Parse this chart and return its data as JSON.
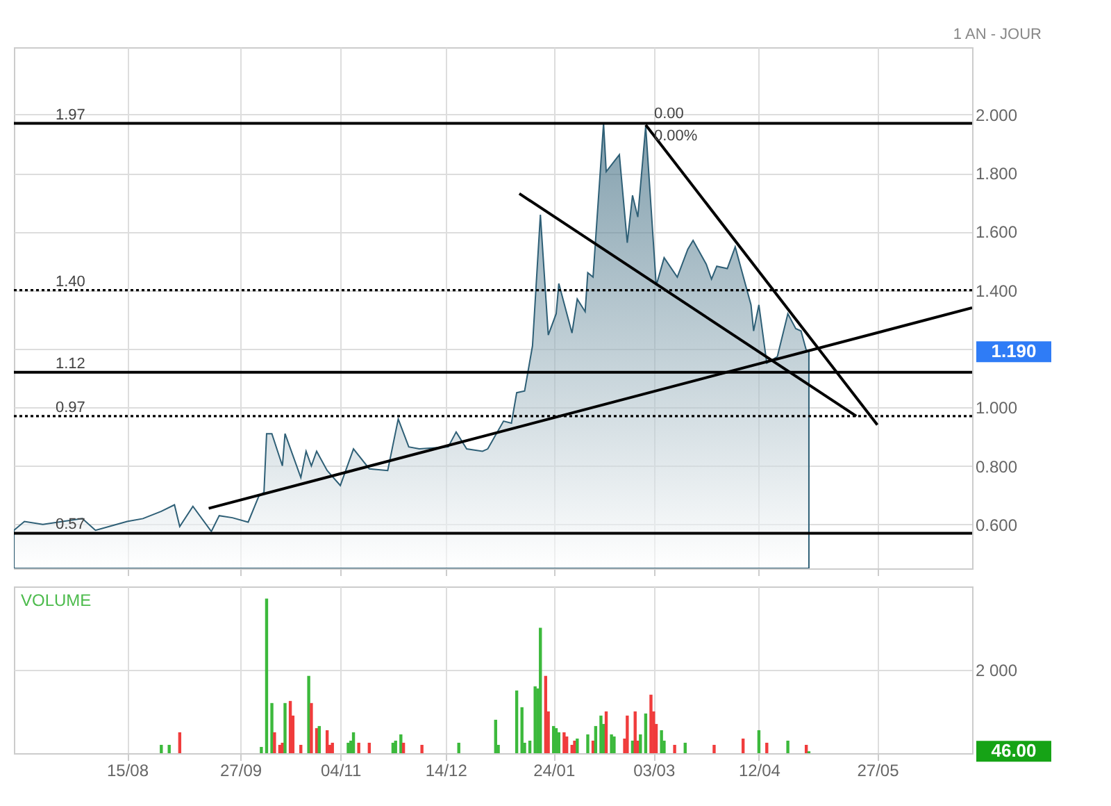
{
  "chart_data": [
    {
      "type": "area",
      "tick_labels": "y",
      "grid": true,
      "annotations": [
        "1 AN - JOUR",
        {
          "text": "0.00",
          "x": "2001-02-28",
          "y": 1.97
        },
        {
          "text": "0.00%",
          "x": "2001-02-28",
          "y": 1.96
        },
        "1.190"
      ],
      "xlim": [
        "2000-07-03",
        "2001-07-02"
      ],
      "xticks": [
        {
          "value": "2000-08-15",
          "label": null
        },
        {
          "value": "2000-09-27",
          "label": null
        },
        {
          "value": "2000-11-04",
          "label": null
        },
        {
          "value": "2000-12-14",
          "label": null
        },
        {
          "value": "2001-01-24",
          "label": null
        },
        {
          "value": "2001-03-03",
          "label": null
        },
        {
          "value": "2001-04-12",
          "label": null
        },
        {
          "value": "2001-05-27",
          "label": null
        }
      ],
      "ylim": [
        0.45,
        2.23
      ],
      "yticks": [
        {
          "value": 0.6,
          "label": "0.600"
        },
        {
          "value": 0.8,
          "label": "0.800"
        },
        {
          "value": 1.0,
          "label": "1.000"
        },
        {
          "value": 1.2,
          "label": null
        },
        {
          "value": 1.4,
          "label": "1.400"
        },
        {
          "value": 1.6,
          "label": "1.600"
        },
        {
          "value": 1.8,
          "label": "1.800"
        },
        {
          "value": 2.0,
          "label": "2.000"
        }
      ],
      "x": [
        "2000-07-03",
        "2000-07-07",
        "2000-07-14",
        "2000-07-29",
        "2000-08-03",
        "2000-08-15",
        "2000-08-21",
        "2000-08-28",
        "2000-09-02",
        "2000-09-04",
        "2000-09-09",
        "2000-09-16",
        "2000-09-19",
        "2000-09-24",
        "2000-09-30",
        "2000-10-04",
        "2000-10-06",
        "2000-10-07",
        "2000-10-09",
        "2000-10-13",
        "2000-10-14",
        "2000-10-20",
        "2000-10-22",
        "2000-10-24",
        "2000-10-26",
        "2000-10-30",
        "2000-11-04",
        "2000-11-09",
        "2000-11-15",
        "2000-11-22",
        "2000-11-26",
        "2000-11-30",
        "2000-12-04",
        "2000-12-15",
        "2000-12-18",
        "2000-12-22",
        "2000-12-28",
        "2000-12-30",
        "2001-01-05",
        "2001-01-08",
        "2001-01-10",
        "2001-01-13",
        "2001-01-16",
        "2001-01-19",
        "2001-01-22",
        "2001-01-25",
        "2001-01-26",
        "2001-01-31",
        "2001-02-02",
        "2001-02-05",
        "2001-02-06",
        "2001-02-08",
        "2001-02-12",
        "2001-02-13",
        "2001-02-16",
        "2001-02-18",
        "2001-02-21",
        "2001-02-23",
        "2001-02-25",
        "2001-02-28",
        "2001-03-04",
        "2001-03-07",
        "2001-03-12",
        "2001-03-16",
        "2001-03-18",
        "2001-03-23",
        "2001-03-25",
        "2001-03-27",
        "2001-03-31",
        "2001-04-03",
        "2001-04-09",
        "2001-04-10",
        "2001-04-12",
        "2001-04-15",
        "2001-04-19",
        "2001-04-23",
        "2001-04-26",
        "2001-04-28",
        "2001-04-30",
        "2001-05-01"
      ],
      "series": [
        {
          "type": "area",
          "color": "#2e5f76",
          "values": [
            0.58,
            0.61,
            0.6,
            0.62,
            0.58,
            0.61,
            0.62,
            0.645,
            0.667,
            0.593,
            0.662,
            0.576,
            0.63,
            0.623,
            0.608,
            0.696,
            0.71,
            0.91,
            0.91,
            0.8,
            0.91,
            0.76,
            0.85,
            0.8,
            0.85,
            0.784,
            0.733,
            0.858,
            0.79,
            0.784,
            0.96,
            0.865,
            0.858,
            0.865,
            0.916,
            0.858,
            0.85,
            0.858,
            0.953,
            0.946,
            1.05,
            1.056,
            1.21,
            1.658,
            1.247,
            1.32,
            1.423,
            1.254,
            1.37,
            1.327,
            1.46,
            1.445,
            1.97,
            1.805,
            1.84,
            1.863,
            1.562,
            1.724,
            1.65,
            1.96,
            1.416,
            1.511,
            1.445,
            1.54,
            1.57,
            1.489,
            1.438,
            1.482,
            1.474,
            1.548,
            1.35,
            1.261,
            1.35,
            1.151,
            1.173,
            1.32,
            1.269,
            1.261,
            1.195,
            1.19
          ]
        },
        {
          "type": "line",
          "color": "#000000",
          "x": [
            "2000-09-15",
            "2001-07-02"
          ],
          "values": [
            0.655,
            1.34
          ]
        },
        {
          "type": "line",
          "color": "#000000",
          "x": [
            "2001-01-11",
            "2001-05-19"
          ],
          "values": [
            1.73,
            0.97
          ]
        },
        {
          "type": "line",
          "color": "#000000",
          "x": [
            "2001-02-28",
            "2001-05-27"
          ],
          "values": [
            1.965,
            0.94
          ]
        }
      ],
      "ref_lines": [
        {
          "axis": "y",
          "value": 1.97,
          "label": "1.97",
          "color": "#000000",
          "line_style": "solid"
        },
        {
          "axis": "y",
          "value": 1.4,
          "label": "1.40",
          "color": "#000000",
          "line_style": "dotted"
        },
        {
          "axis": "y",
          "value": 1.12,
          "label": "1.12",
          "color": "#000000",
          "line_style": "solid"
        },
        {
          "axis": "y",
          "value": 0.97,
          "label": "0.97",
          "color": "#000000",
          "line_style": "dotted"
        },
        {
          "axis": "y",
          "value": 0.57,
          "label": "0.57",
          "color": "#000000",
          "line_style": "solid"
        }
      ]
    },
    {
      "type": "bar",
      "title": "VOLUME",
      "grid": true,
      "annotations": [
        "46.00"
      ],
      "xlim": [
        "2000-07-03",
        "2001-07-02"
      ],
      "xticks": [
        {
          "value": "2000-08-15",
          "label": "15/08"
        },
        {
          "value": "2000-09-27",
          "label": "27/09"
        },
        {
          "value": "2000-11-04",
          "label": "04/11"
        },
        {
          "value": "2000-12-14",
          "label": "14/12"
        },
        {
          "value": "2001-01-24",
          "label": "24/01"
        },
        {
          "value": "2001-03-03",
          "label": "03/03"
        },
        {
          "value": "2001-04-12",
          "label": "12/04"
        },
        {
          "value": "2001-05-27",
          "label": "27/05"
        }
      ],
      "ylim": [
        0,
        3990
      ],
      "yticks": [
        {
          "value": 2000,
          "label": "2 000"
        }
      ],
      "x": [
        "2000-08-28",
        "2000-08-31",
        "2000-09-04",
        "2000-10-05",
        "2000-10-07",
        "2000-10-09",
        "2000-10-10",
        "2000-10-12",
        "2000-10-13",
        "2000-10-14",
        "2000-10-16",
        "2000-10-17",
        "2000-10-20",
        "2000-10-23",
        "2000-10-24",
        "2000-10-26",
        "2000-10-27",
        "2000-10-30",
        "2000-10-31",
        "2000-11-01",
        "2000-11-07",
        "2000-11-08",
        "2000-11-09",
        "2000-11-11",
        "2000-11-15",
        "2000-11-24",
        "2000-11-25",
        "2000-11-27",
        "2000-11-28",
        "2000-12-05",
        "2000-12-19",
        "2001-01-02",
        "2001-01-03",
        "2001-01-10",
        "2001-01-12",
        "2001-01-13",
        "2001-01-15",
        "2001-01-17",
        "2001-01-18",
        "2001-01-19",
        "2001-01-21",
        "2001-01-22",
        "2001-01-24",
        "2001-01-25",
        "2001-01-26",
        "2001-01-28",
        "2001-01-29",
        "2001-01-31",
        "2001-02-01",
        "2001-02-02",
        "2001-02-06",
        "2001-02-08",
        "2001-02-09",
        "2001-02-11",
        "2001-02-12",
        "2001-02-13",
        "2001-02-15",
        "2001-02-16",
        "2001-02-20",
        "2001-02-21",
        "2001-02-23",
        "2001-02-24",
        "2001-02-25",
        "2001-02-26",
        "2001-02-28",
        "2001-03-02",
        "2001-03-03",
        "2001-03-04",
        "2001-03-06",
        "2001-03-07",
        "2001-03-11",
        "2001-03-15",
        "2001-03-26",
        "2001-04-06",
        "2001-04-12",
        "2001-04-15",
        "2001-04-23",
        "2001-04-30",
        "2001-05-01"
      ],
      "values": [
        200,
        200,
        500,
        150,
        3700,
        1200,
        500,
        200,
        250,
        1200,
        1250,
        900,
        200,
        1850,
        1200,
        600,
        650,
        550,
        200,
        250,
        250,
        300,
        500,
        250,
        250,
        250,
        300,
        450,
        250,
        200,
        250,
        800,
        200,
        1500,
        1100,
        250,
        300,
        1600,
        1550,
        3000,
        1850,
        1000,
        650,
        600,
        500,
        500,
        400,
        200,
        300,
        350,
        450,
        300,
        650,
        900,
        700,
        1000,
        450,
        400,
        350,
        900,
        300,
        1000,
        300,
        450,
        950,
        1400,
        1000,
        700,
        550,
        300,
        200,
        250,
        200,
        350,
        550,
        250,
        300,
        200,
        46
      ],
      "colors": [
        "#3cb93c",
        "#3cb93c",
        "#f03c3c",
        "#3cb93c",
        "#3cb93c",
        "#3cb93c",
        "#f03c3c",
        "#f03c3c",
        "#f03c3c",
        "#3cb93c",
        "#f03c3c",
        "#f03c3c",
        "#f03c3c",
        "#3cb93c",
        "#f03c3c",
        "#f03c3c",
        "#3cb93c",
        "#f03c3c",
        "#f03c3c",
        "#f03c3c",
        "#3cb93c",
        "#3cb93c",
        "#3cb93c",
        "#f03c3c",
        "#f03c3c",
        "#3cb93c",
        "#3cb93c",
        "#3cb93c",
        "#f03c3c",
        "#f03c3c",
        "#3cb93c",
        "#3cb93c",
        "#3cb93c",
        "#3cb93c",
        "#3cb93c",
        "#3cb93c",
        "#3cb93c",
        "#3cb93c",
        "#3cb93c",
        "#3cb93c",
        "#f03c3c",
        "#f03c3c",
        "#3cb93c",
        "#3cb93c",
        "#3cb93c",
        "#f03c3c",
        "#f03c3c",
        "#f03c3c",
        "#f03c3c",
        "#3cb93c",
        "#3cb93c",
        "#f03c3c",
        "#3cb93c",
        "#3cb93c",
        "#3cb93c",
        "#f03c3c",
        "#3cb93c",
        "#3cb93c",
        "#f03c3c",
        "#f03c3c",
        "#3cb93c",
        "#f03c3c",
        "#f03c3c",
        "#3cb93c",
        "#3cb93c",
        "#f03c3c",
        "#f03c3c",
        "#f03c3c",
        "#3cb93c",
        "#3cb93c",
        "#f03c3c",
        "#3cb93c",
        "#f03c3c",
        "#f03c3c",
        "#3cb93c",
        "#f03c3c",
        "#3cb93c",
        "#f03c3c",
        "#3cb93c"
      ]
    }
  ]
}
